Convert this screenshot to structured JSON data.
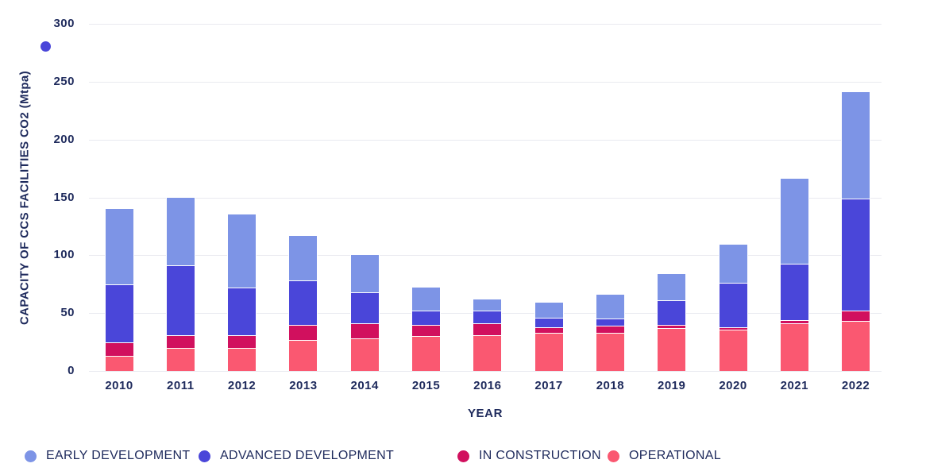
{
  "chart_data": {
    "type": "bar",
    "stacked": true,
    "categories": [
      "2010",
      "2011",
      "2012",
      "2013",
      "2014",
      "2015",
      "2016",
      "2017",
      "2018",
      "2019",
      "2020",
      "2021",
      "2022"
    ],
    "series": [
      {
        "name": "EARLY DEVELOPMENT",
        "color": "#7d94e6",
        "values": [
          65,
          59,
          63,
          39,
          32,
          20,
          10,
          13,
          21,
          23,
          33,
          73,
          92
        ]
      },
      {
        "name": "ADVANCED DEVELOPMENT",
        "color": "#4a46d9",
        "values": [
          50,
          60,
          41,
          38,
          27,
          12,
          11,
          8,
          6,
          21,
          38,
          49,
          97
        ]
      },
      {
        "name": "IN CONSTRUCTION",
        "color": "#d1105e",
        "values": [
          12,
          11,
          11,
          13,
          13,
          10,
          10,
          5,
          6,
          3,
          2,
          3,
          9
        ]
      },
      {
        "name": "OPERATIONAL",
        "color": "#fa5871",
        "values": [
          13,
          20,
          20,
          27,
          28,
          30,
          31,
          33,
          33,
          37,
          36,
          41,
          43
        ]
      }
    ],
    "totals": [
      140,
      150,
      135,
      117,
      100,
      72,
      62,
      59,
      66,
      84,
      109,
      166,
      241
    ],
    "xlabel": "YEAR",
    "ylabel": "CAPACITY OF CCS FACILITIES CO2 (Mtpa)",
    "ylim": [
      0,
      300
    ],
    "yticks": [
      0,
      50,
      100,
      150,
      200,
      250,
      300
    ],
    "grid": "horizontal",
    "legend_position": "bottom"
  },
  "legend": {
    "items": [
      {
        "label": "EARLY DEVELOPMENT",
        "color": "#7d94e6"
      },
      {
        "label": "ADVANCED DEVELOPMENT",
        "color": "#4a46d9"
      },
      {
        "label": "IN CONSTRUCTION",
        "color": "#d1105e"
      },
      {
        "label": "OPERATIONAL",
        "color": "#fa5871"
      }
    ]
  },
  "colors": {
    "axis_text": "#1e2a5c",
    "gridline": "#e9eaf0",
    "background": "#ffffff",
    "stray_dot": "#4a46d9"
  }
}
